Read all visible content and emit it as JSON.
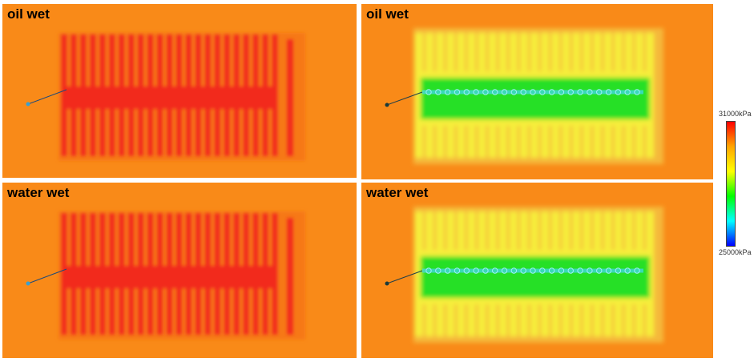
{
  "panels": [
    {
      "label": "oil wet",
      "mode": "red"
    },
    {
      "label": "oil wet",
      "mode": "green"
    },
    {
      "label": "water wet",
      "mode": "red"
    },
    {
      "label": "water wet",
      "mode": "green"
    }
  ],
  "colorbar": {
    "max_label": "31000kPa",
    "min_label": "25000kPa",
    "stops": [
      "#ff0000",
      "#ffa500",
      "#ffff00",
      "#00ff00",
      "#00ffff",
      "#0000ff"
    ]
  },
  "colors": {
    "background": "#f98a18",
    "fracture_red": "#f2291a",
    "fracture_green_core": "#28e028",
    "fracture_yellow": "#f6ee3a",
    "wellbore": "#2f6fd0"
  },
  "fractures_per_stage": 23
}
